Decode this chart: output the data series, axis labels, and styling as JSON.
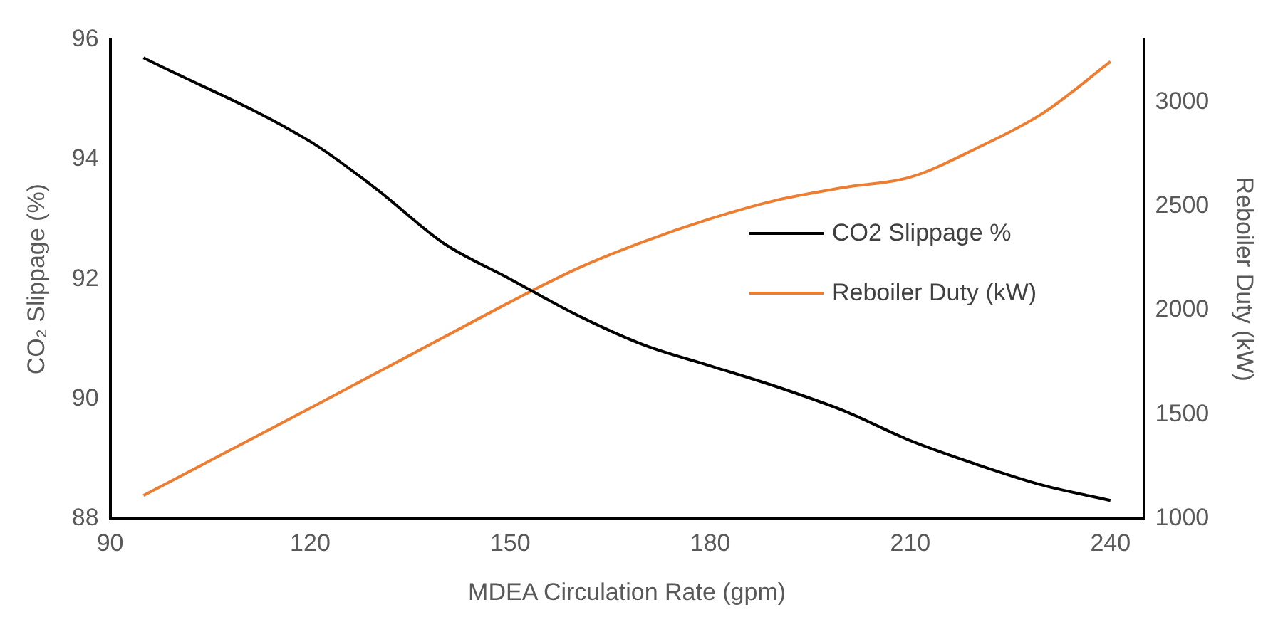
{
  "chart_data": {
    "type": "line",
    "xlabel": "MDEA Circulation Rate (gpm)",
    "ylabel": "CO₂ Slippage (%)",
    "y2label": "Reboiler Duty (kW)",
    "x": [
      95,
      120,
      130,
      140,
      150,
      160,
      170,
      180,
      190,
      200,
      210,
      220,
      230,
      240
    ],
    "series": [
      {
        "name": "CO2 Slippage %",
        "color": "#000000",
        "values": [
          95.7,
          94.3,
          93.5,
          92.6,
          92.0,
          91.4,
          90.9,
          90.55,
          90.2,
          89.8,
          89.3,
          88.9,
          88.55,
          88.3
        ]
      },
      {
        "name": "Reboiler Duty (kW)",
        "color": "#ed7d31",
        "axis": "y2",
        "values": [
          1110,
          1530,
          1700,
          1870,
          2040,
          2200,
          2330,
          2440,
          2530,
          2590,
          2640,
          2780,
          2950,
          3195
        ]
      }
    ],
    "xlim": [
      90,
      245
    ],
    "xticks": [
      90,
      120,
      150,
      180,
      210,
      240
    ],
    "ylim": [
      88,
      96
    ],
    "yticks": [
      88,
      90,
      92,
      94,
      96
    ],
    "y2lim": [
      1000,
      3300
    ],
    "y2ticks": [
      1000,
      1500,
      2000,
      2500,
      3000
    ],
    "grid": false,
    "legend": "right",
    "marker": "none",
    "line_style": "solid"
  }
}
